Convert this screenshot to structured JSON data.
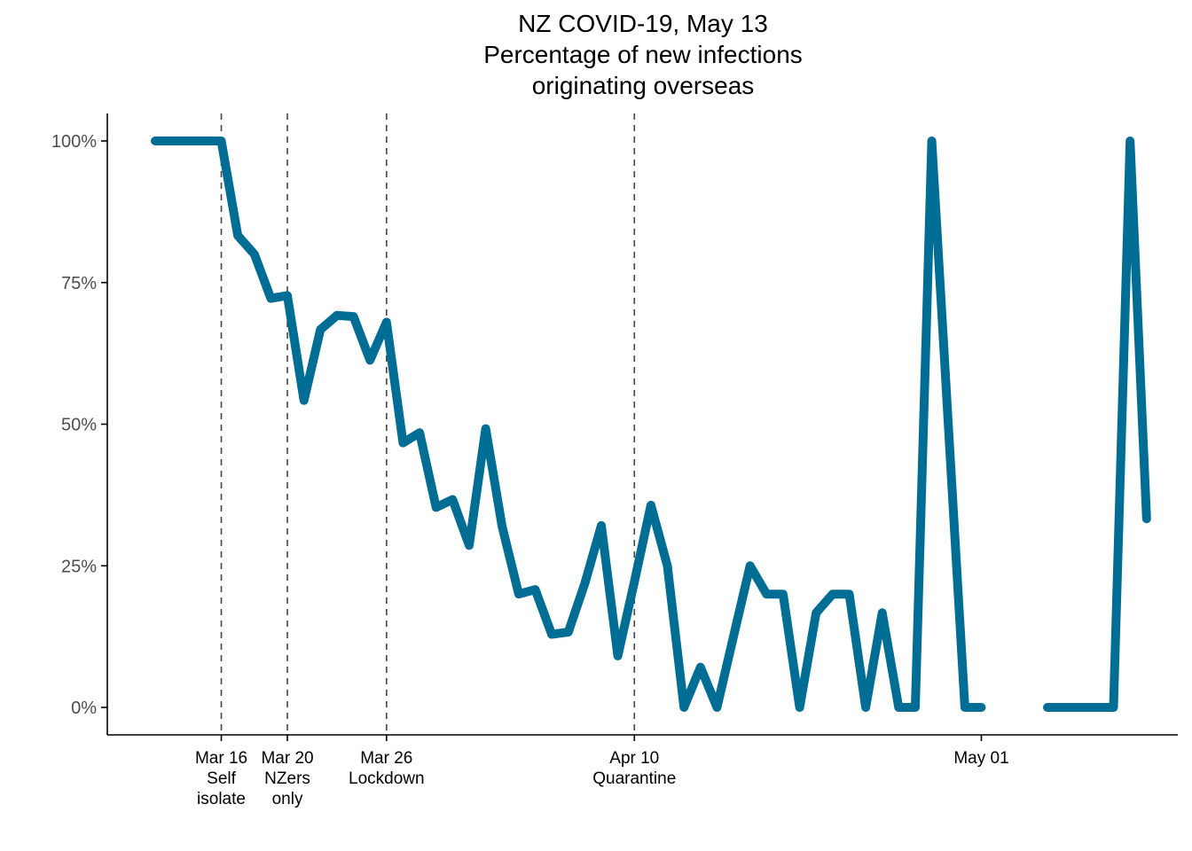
{
  "chart_data": {
    "type": "line",
    "title_lines": [
      "NZ COVID-19, May 13",
      "Percentage of new infections",
      "originating overseas"
    ],
    "xlabel": "",
    "ylabel": "",
    "ylim": [
      0,
      100
    ],
    "y_ticks": [
      {
        "value": 0,
        "label": "0%"
      },
      {
        "value": 25,
        "label": "25%"
      },
      {
        "value": 50,
        "label": "50%"
      },
      {
        "value": 75,
        "label": "75%"
      },
      {
        "value": 100,
        "label": "100%"
      }
    ],
    "x_ticks": [
      {
        "day": 15,
        "lines": [
          "Mar 16",
          "Self",
          "isolate"
        ]
      },
      {
        "day": 19,
        "lines": [
          "Mar 20",
          "NZers",
          "only"
        ]
      },
      {
        "day": 25,
        "lines": [
          "Mar 26",
          "Lockdown"
        ]
      },
      {
        "day": 40,
        "lines": [
          "Apr 10",
          "Quarantine"
        ]
      },
      {
        "day": 61,
        "lines": [
          "May 01"
        ]
      }
    ],
    "event_lines": [
      15,
      19,
      25,
      40
    ],
    "x_range": [
      11,
      73
    ],
    "color": "#006d94",
    "series": [
      {
        "name": "Percentage of new infections originating overseas",
        "segments": [
          {
            "start_day": 11,
            "values": [
              100,
              100,
              100,
              100,
              100,
              83.3,
              80,
              72.2,
              72.7,
              54.2,
              66.7,
              69.2,
              69,
              61.3,
              68,
              46.7,
              48.5,
              35.3,
              36.7,
              28.6,
              49.2,
              31.9,
              20,
              20.8,
              12.9,
              13.3,
              21.9,
              32.1,
              9.1,
              22.2,
              35.7,
              25,
              0,
              7.1,
              0,
              12.5,
              25,
              20,
              20,
              0,
              16.7,
              20,
              20,
              0,
              16.7,
              0,
              0,
              100,
              50,
              0,
              0
            ]
          },
          {
            "start_day": 65,
            "values": [
              0,
              0,
              0,
              0,
              0,
              100,
              33.3
            ]
          }
        ]
      }
    ]
  }
}
